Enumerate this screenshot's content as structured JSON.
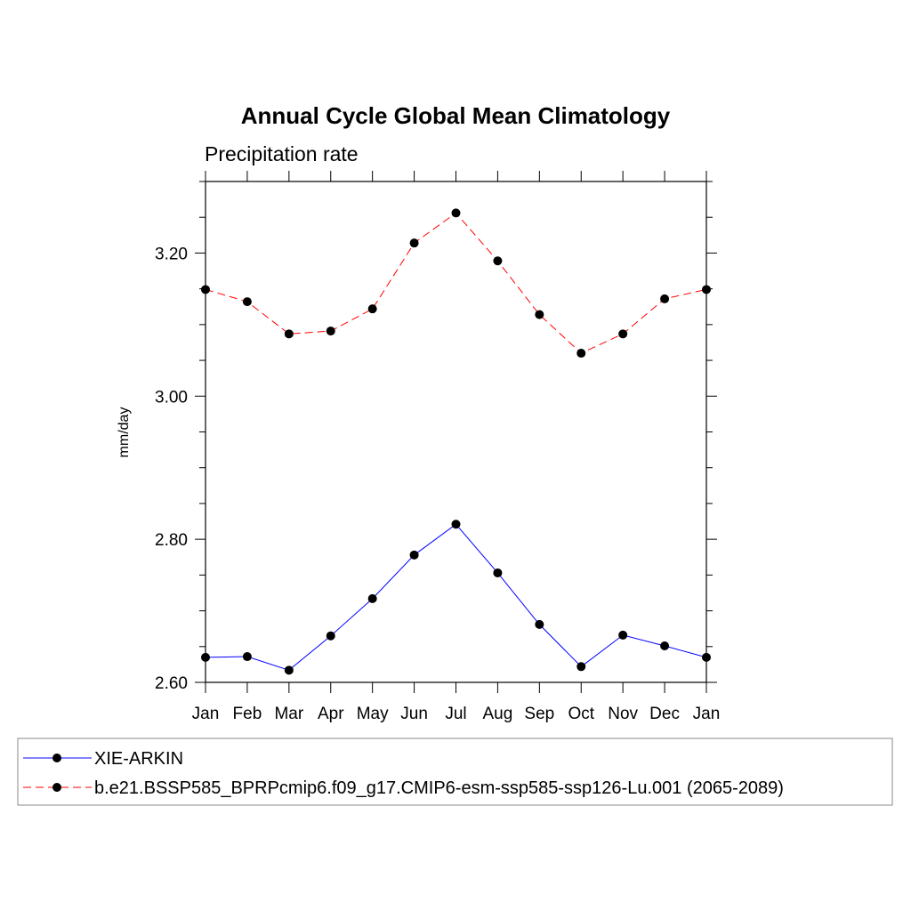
{
  "chart_data": {
    "type": "line",
    "title": "Annual Cycle Global Mean Climatology",
    "subtitle": "Precipitation rate",
    "xlabel": "",
    "ylabel": "mm/day",
    "categories": [
      "Jan",
      "Feb",
      "Mar",
      "Apr",
      "May",
      "Jun",
      "Jul",
      "Aug",
      "Sep",
      "Oct",
      "Nov",
      "Dec",
      "Jan"
    ],
    "ylim": [
      2.6,
      3.3
    ],
    "yticks": [
      2.6,
      2.8,
      3.0,
      3.2
    ],
    "ytick_labels": [
      "2.60",
      "2.80",
      "3.00",
      "3.20"
    ],
    "grid": false,
    "legend_position": "bottom",
    "series": [
      {
        "name": "XIE-ARKIN",
        "color": "#0000ff",
        "line_style": "solid",
        "marker": "filled-circle",
        "values": [
          2.635,
          2.636,
          2.617,
          2.665,
          2.717,
          2.778,
          2.821,
          2.753,
          2.681,
          2.622,
          2.666,
          2.651,
          2.635
        ]
      },
      {
        "name": "b.e21.BSSP585_BPRPcmip6.f09_g17.CMIP6-esm-ssp585-ssp126-Lu.001 (2065-2089)",
        "color": "#ff0000",
        "line_style": "dashed",
        "marker": "filled-circle",
        "values": [
          3.149,
          3.132,
          3.087,
          3.091,
          3.122,
          3.214,
          3.256,
          3.189,
          3.114,
          3.06,
          3.087,
          3.136,
          3.149
        ]
      }
    ]
  }
}
